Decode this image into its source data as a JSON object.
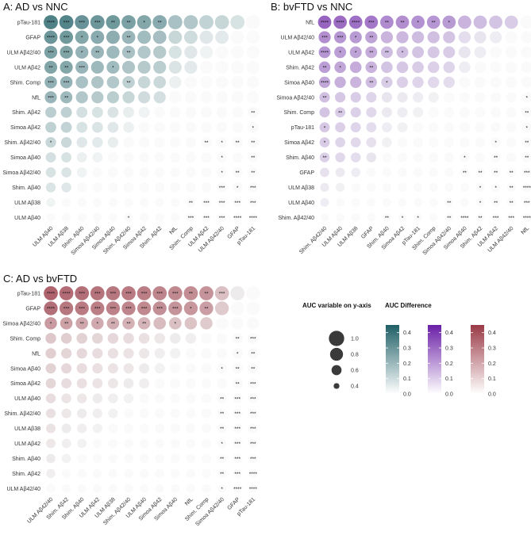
{
  "chart_data": [
    {
      "type": "bubble-matrix",
      "panel": "A",
      "title": "A:  AD vs NNC",
      "color_low": "#ffffff",
      "color_high": "#1f5f66",
      "y_labels": [
        "pTau-181",
        "GFAP",
        "ULM Aβ42/40",
        "ULM Aβ42",
        "Shim. Comp",
        "NfL",
        "Shim. Aβ42",
        "Simoa Aβ42",
        "Shim. Aβ42/40",
        "Simoa Aβ40",
        "Simoa Aβ42/40",
        "Shim. Aβ40",
        "ULM Aβ38",
        "ULM Aβ40"
      ],
      "x_labels": [
        "ULM Aβ40",
        "ULM Aβ38",
        "Shim. Aβ40",
        "Simoa Aβ42/40",
        "Simoa Aβ40",
        "Shim. Aβ42/40",
        "Simoa Aβ42",
        "Shim. Aβ42",
        "NfL",
        "Shim. Comp",
        "ULM Aβ42",
        "ULM Aβ42/40",
        "GFAP",
        "pTau-181"
      ],
      "y_auc": [
        0.96,
        0.89,
        0.85,
        0.84,
        0.8,
        0.78,
        0.7,
        0.69,
        0.67,
        0.64,
        0.63,
        0.62,
        0.57,
        0.56
      ],
      "x_auc": [
        0.56,
        0.57,
        0.62,
        0.63,
        0.64,
        0.67,
        0.69,
        0.7,
        0.78,
        0.8,
        0.84,
        0.85,
        0.89,
        0.96
      ],
      "stars": [
        [
          0,
          0,
          "****"
        ],
        [
          0,
          1,
          "***"
        ],
        [
          0,
          2,
          "***"
        ],
        [
          0,
          3,
          "***"
        ],
        [
          0,
          4,
          "**"
        ],
        [
          0,
          5,
          "**"
        ],
        [
          0,
          6,
          "*"
        ],
        [
          0,
          7,
          "**"
        ],
        [
          1,
          0,
          "****"
        ],
        [
          1,
          1,
          "***"
        ],
        [
          1,
          2,
          "*"
        ],
        [
          1,
          3,
          "*"
        ],
        [
          1,
          5,
          "**"
        ],
        [
          2,
          0,
          "***"
        ],
        [
          2,
          1,
          "***"
        ],
        [
          2,
          2,
          "*"
        ],
        [
          2,
          3,
          "**"
        ],
        [
          2,
          5,
          "**"
        ],
        [
          3,
          0,
          "**"
        ],
        [
          3,
          1,
          "**"
        ],
        [
          3,
          2,
          "***"
        ],
        [
          3,
          4,
          "*"
        ],
        [
          4,
          0,
          "***"
        ],
        [
          4,
          1,
          "***"
        ],
        [
          4,
          5,
          "**"
        ],
        [
          5,
          0,
          "***"
        ],
        [
          5,
          1,
          "**"
        ],
        [
          6,
          13,
          "**"
        ],
        [
          7,
          13,
          "*"
        ],
        [
          8,
          0,
          "*"
        ],
        [
          8,
          10,
          "**"
        ],
        [
          8,
          11,
          "*"
        ],
        [
          8,
          12,
          "**"
        ],
        [
          8,
          13,
          "**"
        ],
        [
          9,
          11,
          "*"
        ],
        [
          9,
          13,
          "**"
        ],
        [
          10,
          11,
          "*"
        ],
        [
          10,
          12,
          "**"
        ],
        [
          10,
          13,
          "**"
        ],
        [
          11,
          11,
          "***"
        ],
        [
          11,
          12,
          "*"
        ],
        [
          11,
          13,
          "***"
        ],
        [
          12,
          9,
          "**"
        ],
        [
          12,
          10,
          "***"
        ],
        [
          12,
          11,
          "***"
        ],
        [
          12,
          12,
          "***"
        ],
        [
          12,
          13,
          "***"
        ],
        [
          13,
          5,
          "*"
        ],
        [
          13,
          9,
          "***"
        ],
        [
          13,
          10,
          "***"
        ],
        [
          13,
          11,
          "***"
        ],
        [
          13,
          12,
          "****"
        ],
        [
          13,
          13,
          "****"
        ]
      ]
    },
    {
      "type": "bubble-matrix",
      "panel": "B",
      "title": "B:  bvFTD vs NNC",
      "color_low": "#ffffff",
      "color_high": "#6a1fa6",
      "y_labels": [
        "NfL",
        "ULM Aβ42/40",
        "ULM Aβ42",
        "Shim. Aβ42",
        "Simoa Aβ40",
        "Simoa Aβ42/40",
        "Shim. Comp",
        "pTau-181",
        "Simoa Aβ42",
        "Shim. Aβ40",
        "GFAP",
        "ULM Aβ38",
        "ULM Aβ40",
        "Shim. Aβ42/40"
      ],
      "x_labels": [
        "Shim. Aβ42/40",
        "ULM Aβ40",
        "ULM Aβ38",
        "GFAP",
        "Shim. Aβ40",
        "Simoa Aβ42",
        "pTau-181",
        "Shim. Comp",
        "Simoa Aβ42/40",
        "Simoa Aβ40",
        "Shim. Aβ42",
        "ULM Aβ42",
        "ULM Aβ42/40",
        "NfL"
      ],
      "y_auc": [
        0.88,
        0.78,
        0.76,
        0.74,
        0.72,
        0.66,
        0.65,
        0.64,
        0.63,
        0.62,
        0.58,
        0.56,
        0.55,
        0.53
      ],
      "x_auc": [
        0.53,
        0.55,
        0.56,
        0.58,
        0.62,
        0.63,
        0.64,
        0.65,
        0.66,
        0.72,
        0.74,
        0.76,
        0.78,
        0.88
      ],
      "stars": [
        [
          0,
          0,
          "****"
        ],
        [
          0,
          1,
          "****"
        ],
        [
          0,
          2,
          "****"
        ],
        [
          0,
          3,
          "***"
        ],
        [
          0,
          4,
          "**"
        ],
        [
          0,
          5,
          "**"
        ],
        [
          0,
          6,
          "*"
        ],
        [
          0,
          7,
          "**"
        ],
        [
          0,
          8,
          "*"
        ],
        [
          1,
          0,
          "***"
        ],
        [
          1,
          1,
          "***"
        ],
        [
          1,
          2,
          "*"
        ],
        [
          1,
          3,
          "**"
        ],
        [
          2,
          0,
          "****"
        ],
        [
          2,
          1,
          "*"
        ],
        [
          2,
          2,
          "*"
        ],
        [
          2,
          3,
          "**"
        ],
        [
          2,
          4,
          "**"
        ],
        [
          2,
          5,
          "*"
        ],
        [
          3,
          0,
          "**"
        ],
        [
          3,
          1,
          "*"
        ],
        [
          3,
          3,
          "**"
        ],
        [
          4,
          0,
          "****"
        ],
        [
          4,
          3,
          "**"
        ],
        [
          4,
          4,
          "*"
        ],
        [
          5,
          0,
          "**"
        ],
        [
          5,
          13,
          "*"
        ],
        [
          6,
          1,
          "**"
        ],
        [
          6,
          13,
          "**"
        ],
        [
          7,
          0,
          "*"
        ],
        [
          7,
          13,
          "*"
        ],
        [
          8,
          0,
          "*"
        ],
        [
          8,
          11,
          "*"
        ],
        [
          8,
          13,
          "**"
        ],
        [
          9,
          0,
          "**"
        ],
        [
          9,
          9,
          "*"
        ],
        [
          9,
          11,
          "**"
        ],
        [
          9,
          13,
          "**"
        ],
        [
          10,
          9,
          "**"
        ],
        [
          10,
          10,
          "**"
        ],
        [
          10,
          11,
          "**"
        ],
        [
          10,
          12,
          "**"
        ],
        [
          10,
          13,
          "***"
        ],
        [
          11,
          10,
          "*"
        ],
        [
          11,
          11,
          "*"
        ],
        [
          11,
          12,
          "**"
        ],
        [
          11,
          13,
          "****"
        ],
        [
          12,
          8,
          "**"
        ],
        [
          12,
          10,
          "*"
        ],
        [
          12,
          11,
          "**"
        ],
        [
          12,
          12,
          "**"
        ],
        [
          12,
          13,
          "***"
        ],
        [
          13,
          4,
          "**"
        ],
        [
          13,
          5,
          "*"
        ],
        [
          13,
          6,
          "*"
        ],
        [
          13,
          8,
          "**"
        ],
        [
          13,
          9,
          "****"
        ],
        [
          13,
          10,
          "**"
        ],
        [
          13,
          11,
          "***"
        ],
        [
          13,
          12,
          "***"
        ],
        [
          13,
          13,
          "****"
        ]
      ]
    },
    {
      "type": "bubble-matrix",
      "panel": "C",
      "title": "C:  AD vs bvFTD",
      "color_low": "#ffffff",
      "color_high": "#9a3a46",
      "y_labels": [
        "pTau-181",
        "GFAP",
        "Simoa Aβ42/40",
        "Shim. Comp",
        "NfL",
        "Simoa Aβ40",
        "Simoa Aβ42",
        "ULM Aβ40",
        "Shim. Aβ42/40",
        "ULM Aβ38",
        "ULM Aβ42",
        "Shim. Aβ40",
        "Shim. Aβ42",
        "ULM Aβ42/40"
      ],
      "x_labels": [
        "ULM Aβ42/40",
        "Shim. Aβ42",
        "Shim. Aβ40",
        "ULM Aβ42",
        "ULM Aβ38",
        "Shim. Aβ42/40",
        "ULM Aβ40",
        "Simoa Aβ42",
        "Simoa Aβ40",
        "NfL",
        "Shim. Comp",
        "Simoa Aβ42/40",
        "GFAP",
        "pTau-181"
      ],
      "y_auc": [
        0.95,
        0.92,
        0.8,
        0.68,
        0.66,
        0.65,
        0.64,
        0.62,
        0.61,
        0.6,
        0.59,
        0.58,
        0.57,
        0.55
      ],
      "x_auc": [
        0.55,
        0.57,
        0.58,
        0.59,
        0.6,
        0.61,
        0.62,
        0.64,
        0.65,
        0.66,
        0.68,
        0.8,
        0.92,
        0.95
      ],
      "stars": [
        [
          0,
          0,
          "****"
        ],
        [
          0,
          1,
          "****"
        ],
        [
          0,
          2,
          "***"
        ],
        [
          0,
          3,
          "***"
        ],
        [
          0,
          4,
          "***"
        ],
        [
          0,
          5,
          "***"
        ],
        [
          0,
          6,
          "***"
        ],
        [
          0,
          7,
          "***"
        ],
        [
          0,
          8,
          "***"
        ],
        [
          0,
          9,
          "**"
        ],
        [
          0,
          10,
          "**"
        ],
        [
          0,
          11,
          "***"
        ],
        [
          1,
          0,
          "****"
        ],
        [
          1,
          1,
          "***"
        ],
        [
          1,
          2,
          "***"
        ],
        [
          1,
          3,
          "***"
        ],
        [
          1,
          4,
          "***"
        ],
        [
          1,
          5,
          "***"
        ],
        [
          1,
          6,
          "***"
        ],
        [
          1,
          7,
          "***"
        ],
        [
          1,
          8,
          "***"
        ],
        [
          1,
          9,
          "*"
        ],
        [
          1,
          10,
          "**"
        ],
        [
          2,
          0,
          "*"
        ],
        [
          2,
          1,
          "**"
        ],
        [
          2,
          2,
          "**"
        ],
        [
          2,
          3,
          "*"
        ],
        [
          2,
          4,
          "**"
        ],
        [
          2,
          5,
          "**"
        ],
        [
          2,
          6,
          "**"
        ],
        [
          2,
          8,
          "*"
        ],
        [
          3,
          12,
          "**"
        ],
        [
          3,
          13,
          "***"
        ],
        [
          4,
          12,
          "*"
        ],
        [
          4,
          13,
          "**"
        ],
        [
          5,
          11,
          "*"
        ],
        [
          5,
          12,
          "**"
        ],
        [
          5,
          13,
          "**"
        ],
        [
          6,
          12,
          "**"
        ],
        [
          6,
          13,
          "***"
        ],
        [
          7,
          11,
          "**"
        ],
        [
          7,
          12,
          "***"
        ],
        [
          7,
          13,
          "***"
        ],
        [
          8,
          11,
          "**"
        ],
        [
          8,
          12,
          "***"
        ],
        [
          8,
          13,
          "***"
        ],
        [
          9,
          11,
          "**"
        ],
        [
          9,
          12,
          "***"
        ],
        [
          9,
          13,
          "***"
        ],
        [
          10,
          11,
          "*"
        ],
        [
          10,
          12,
          "***"
        ],
        [
          10,
          13,
          "***"
        ],
        [
          11,
          11,
          "**"
        ],
        [
          11,
          12,
          "***"
        ],
        [
          11,
          13,
          "***"
        ],
        [
          12,
          11,
          "**"
        ],
        [
          12,
          12,
          "***"
        ],
        [
          12,
          13,
          "****"
        ],
        [
          13,
          11,
          "*"
        ],
        [
          13,
          12,
          "****"
        ],
        [
          13,
          13,
          "****"
        ]
      ]
    }
  ],
  "legend": {
    "size_title": "AUC variable on y-axis",
    "size_breaks": [
      1.0,
      0.8,
      0.6,
      0.4
    ],
    "size_labels": [
      "1.0",
      "0.8",
      "0.6",
      "0.4"
    ],
    "color_title": "AUC Difference",
    "color_ticks": [
      "0.4",
      "0.3",
      "0.2",
      "0.1",
      "0.0"
    ],
    "color_tick_values": [
      0.4,
      0.3,
      0.2,
      0.1,
      0.0
    ],
    "color_max": 0.45,
    "bar_colors": [
      "#1f5f66",
      "#6a1fa6",
      "#9a3a46"
    ]
  }
}
